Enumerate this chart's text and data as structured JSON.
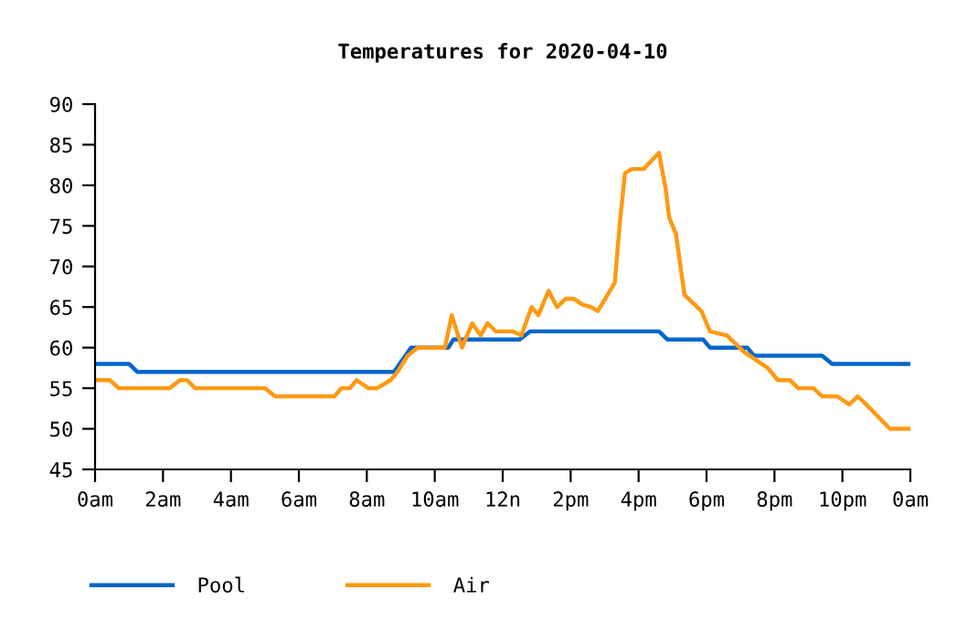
{
  "chart_data": {
    "type": "line",
    "title": "Temperatures for 2020-04-10",
    "xlim": [
      "2020-04-10T00:00",
      "2020-04-11T00:00"
    ],
    "ylim": [
      45,
      90
    ],
    "xticks": [
      {
        "value": "2020-04-10T00:00",
        "label": "0am"
      },
      {
        "value": "2020-04-10T02:00",
        "label": "2am"
      },
      {
        "value": "2020-04-10T04:00",
        "label": "4am"
      },
      {
        "value": "2020-04-10T06:00",
        "label": "6am"
      },
      {
        "value": "2020-04-10T08:00",
        "label": "8am"
      },
      {
        "value": "2020-04-10T10:00",
        "label": "10am"
      },
      {
        "value": "2020-04-10T12:00",
        "label": "12n"
      },
      {
        "value": "2020-04-10T14:00",
        "label": "2pm"
      },
      {
        "value": "2020-04-10T16:00",
        "label": "4pm"
      },
      {
        "value": "2020-04-10T18:00",
        "label": "6pm"
      },
      {
        "value": "2020-04-10T20:00",
        "label": "8pm"
      },
      {
        "value": "2020-04-10T22:00",
        "label": "10pm"
      },
      {
        "value": "2020-04-11T00:00",
        "label": "0am"
      }
    ],
    "yticks": [
      45,
      50,
      55,
      60,
      65,
      70,
      75,
      80,
      85,
      90
    ],
    "grid": false,
    "legend": "bottom",
    "marker": "none",
    "line_style": "solid",
    "series": [
      {
        "name": "Pool",
        "color": "#0066cc",
        "x": [
          "2020-04-10T00:00",
          "2020-04-10T01:00",
          "2020-04-10T01:15",
          "2020-04-10T08:48",
          "2020-04-10T09:18",
          "2020-04-10T10:24",
          "2020-04-10T10:33",
          "2020-04-10T12:30",
          "2020-04-10T12:48",
          "2020-04-10T16:36",
          "2020-04-10T16:51",
          "2020-04-10T17:54",
          "2020-04-10T18:06",
          "2020-04-10T19:12",
          "2020-04-10T19:24",
          "2020-04-10T21:24",
          "2020-04-10T21:42",
          "2020-04-11T00:00"
        ],
        "values": [
          58,
          58,
          57,
          57,
          60,
          60,
          61,
          61,
          62,
          62,
          61,
          61,
          60,
          60,
          59,
          59,
          58,
          58
        ]
      },
      {
        "name": "Air",
        "color": "#ff9912",
        "x": [
          "2020-04-10T00:00",
          "2020-04-10T00:26",
          "2020-04-10T00:42",
          "2020-04-10T02:12",
          "2020-04-10T02:30",
          "2020-04-10T02:42",
          "2020-04-10T02:57",
          "2020-04-10T05:00",
          "2020-04-10T05:18",
          "2020-04-10T07:03",
          "2020-04-10T07:15",
          "2020-04-10T07:30",
          "2020-04-10T07:42",
          "2020-04-10T08:03",
          "2020-04-10T08:18",
          "2020-04-10T08:42",
          "2020-04-10T08:54",
          "2020-04-10T09:12",
          "2020-04-10T09:30",
          "2020-04-10T10:18",
          "2020-04-10T10:30",
          "2020-04-10T10:48",
          "2020-04-10T11:06",
          "2020-04-10T11:21",
          "2020-04-10T11:33",
          "2020-04-10T11:48",
          "2020-04-10T12:18",
          "2020-04-10T12:33",
          "2020-04-10T12:51",
          "2020-04-10T13:03",
          "2020-04-10T13:21",
          "2020-04-10T13:36",
          "2020-04-10T13:51",
          "2020-04-10T14:06",
          "2020-04-10T14:21",
          "2020-04-10T14:36",
          "2020-04-10T14:48",
          "2020-04-10T15:18",
          "2020-04-10T15:27",
          "2020-04-10T15:36",
          "2020-04-10T15:48",
          "2020-04-10T16:09",
          "2020-04-10T16:36",
          "2020-04-10T16:48",
          "2020-04-10T16:54",
          "2020-04-10T17:06",
          "2020-04-10T17:21",
          "2020-04-10T17:51",
          "2020-04-10T18:06",
          "2020-04-10T18:36",
          "2020-04-10T19:06",
          "2020-04-10T19:48",
          "2020-04-10T20:06",
          "2020-04-10T20:27",
          "2020-04-10T20:42",
          "2020-04-10T21:09",
          "2020-04-10T21:24",
          "2020-04-10T21:51",
          "2020-04-10T22:12",
          "2020-04-10T22:27",
          "2020-04-10T22:42",
          "2020-04-10T23:24",
          "2020-04-11T00:00"
        ],
        "values": [
          56,
          56,
          55,
          55,
          56,
          56,
          55,
          55,
          54,
          54,
          55,
          55,
          56,
          55,
          55,
          56,
          57,
          59,
          60,
          60,
          64,
          60,
          63,
          61.5,
          63,
          62,
          62,
          61.5,
          65,
          64,
          67,
          65,
          66,
          66,
          65.3,
          65,
          64.5,
          68,
          75.5,
          81.5,
          82,
          82,
          84,
          79.5,
          76,
          74,
          66.5,
          64.5,
          62,
          61.5,
          59.5,
          57.5,
          56,
          56,
          55,
          55,
          54,
          54,
          53,
          54,
          53,
          50,
          50
        ]
      }
    ]
  }
}
